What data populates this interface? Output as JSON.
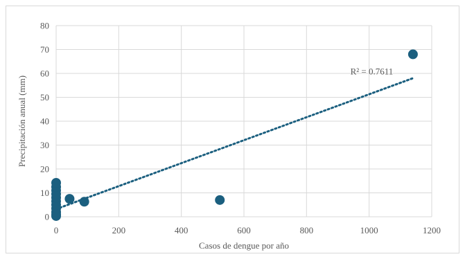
{
  "chart_data": {
    "type": "scatter",
    "title": "",
    "xlabel": "Casos de dengue por año",
    "ylabel": "Precipitación anual (mm)",
    "xlim": [
      0,
      1200
    ],
    "ylim": [
      0,
      80
    ],
    "xticks": [
      0,
      200,
      400,
      600,
      800,
      1000,
      1200
    ],
    "yticks": [
      0,
      10,
      20,
      30,
      40,
      50,
      60,
      70,
      80
    ],
    "grid": true,
    "legend": "none",
    "series": [
      {
        "points": [
          {
            "x": 0,
            "y": 0.3
          },
          {
            "x": 0,
            "y": 1.0
          },
          {
            "x": 0,
            "y": 2.0
          },
          {
            "x": 0,
            "y": 3.5
          },
          {
            "x": 0,
            "y": 5.0
          },
          {
            "x": 0,
            "y": 6.5
          },
          {
            "x": 0,
            "y": 8.0
          },
          {
            "x": 0,
            "y": 9.5
          },
          {
            "x": 0,
            "y": 11.0
          },
          {
            "x": 0,
            "y": 12.5
          },
          {
            "x": 0,
            "y": 14.2
          },
          {
            "x": 43,
            "y": 7.5
          },
          {
            "x": 90,
            "y": 6.3
          },
          {
            "x": 523,
            "y": 7.0
          },
          {
            "x": 1140,
            "y": 68.0
          }
        ]
      }
    ],
    "trendline": {
      "type": "linear",
      "x_start": 0,
      "y_start": 3.2,
      "x_end": 1140,
      "y_end": 58.0,
      "r2_label": "R² = 0.7611",
      "label_position": {
        "x": 940,
        "y": 59.5
      }
    },
    "colors": {
      "marker": "#1b5f7f",
      "trendline": "#1b5f7f",
      "grid": "#d9d9d9",
      "axis_text": "#595959"
    }
  }
}
